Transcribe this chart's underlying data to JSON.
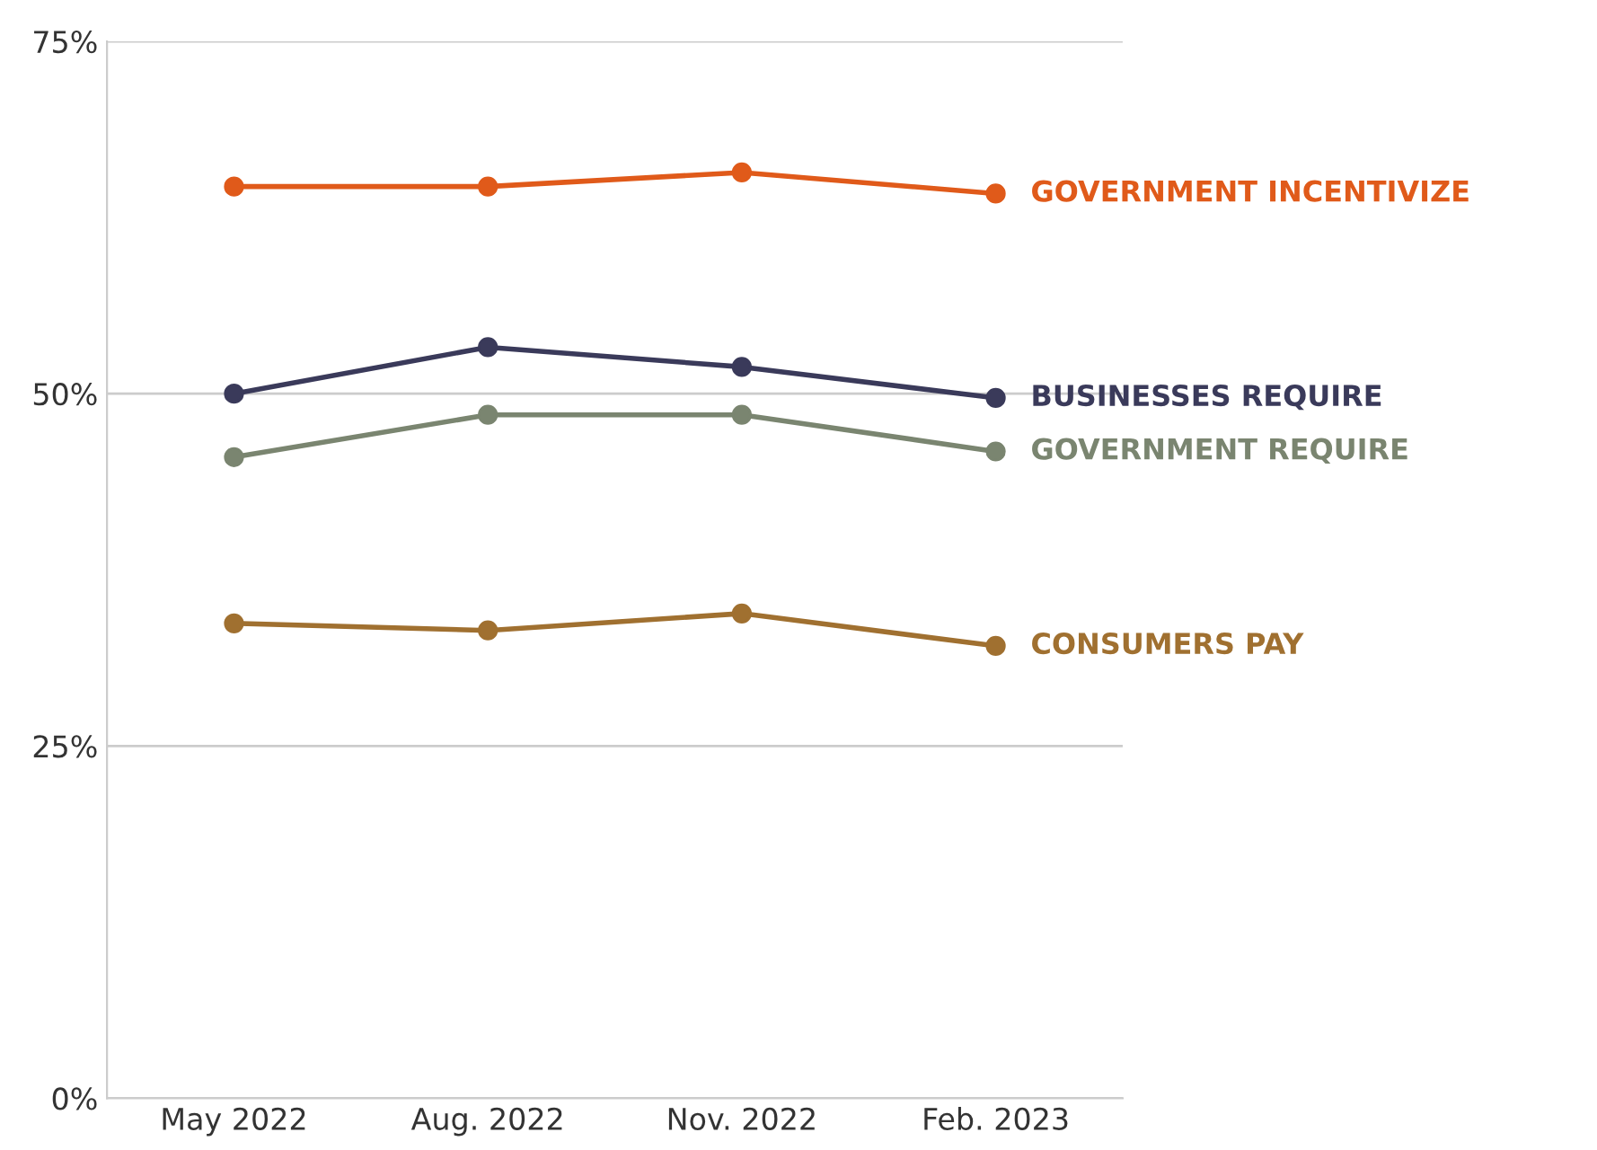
{
  "chart_data": {
    "type": "line",
    "categories": [
      "May 2022",
      "Aug. 2022",
      "Nov. 2022",
      "Feb. 2023"
    ],
    "series": [
      {
        "name": "GOVERNMENT INCENTIVIZE",
        "color": "#e05a1a",
        "values": [
          64.7,
          64.7,
          65.7,
          64.2
        ]
      },
      {
        "name": "BUSINESSES REQUIRE",
        "color": "#3a3a5a",
        "values": [
          50.0,
          53.3,
          51.9,
          49.7
        ]
      },
      {
        "name": "GOVERNMENT REQUIRE",
        "color": "#7a8570",
        "values": [
          45.5,
          48.5,
          48.5,
          45.9
        ]
      },
      {
        "name": "CONSUMERS PAY",
        "color": "#a07030",
        "values": [
          33.7,
          33.2,
          34.4,
          32.1
        ]
      }
    ],
    "ylim": [
      0,
      75
    ],
    "yticks": [
      {
        "value": 0,
        "label": "0%"
      },
      {
        "value": 25,
        "label": "25%"
      },
      {
        "value": 50,
        "label": "50%"
      },
      {
        "value": 75,
        "label": "75%"
      }
    ],
    "grid": "y",
    "marker": "circle",
    "line_style": "solid",
    "legend": false
  }
}
